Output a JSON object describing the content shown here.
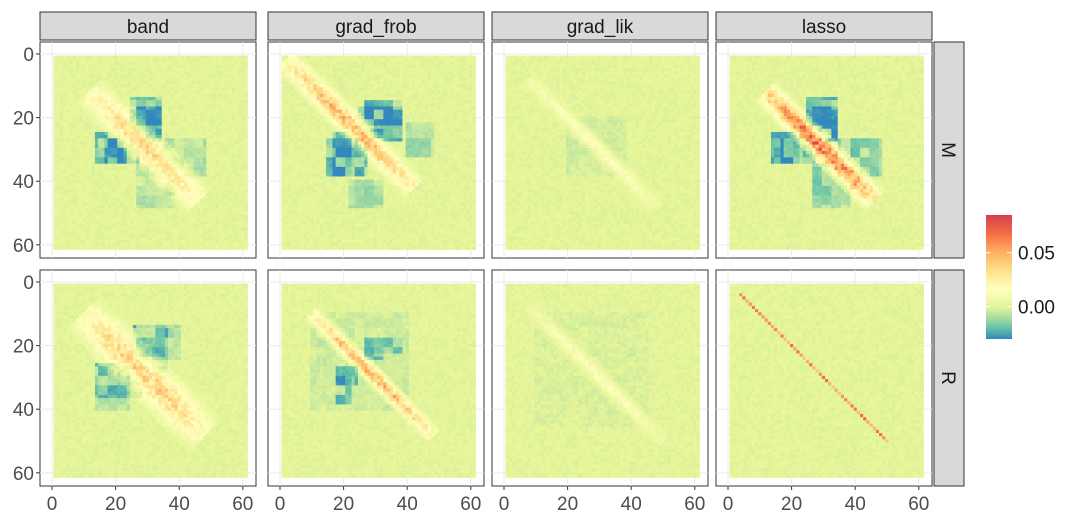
{
  "chart_data": {
    "type": "heatmap",
    "title": "",
    "xlabel": "",
    "ylabel": "",
    "columns": [
      "band",
      "grad_frob",
      "grad_lik",
      "lasso"
    ],
    "rows": [
      "M",
      "R"
    ],
    "x_range": [
      1,
      61
    ],
    "y_range": [
      1,
      61
    ],
    "y_reversed": true,
    "x_ticks": [
      "0",
      "20",
      "40",
      "60"
    ],
    "y_ticks": [
      "0",
      "20",
      "40",
      "60"
    ],
    "grid": true,
    "legend": {
      "position": "right",
      "title": "",
      "labels": [
        "0.05",
        "0.00"
      ],
      "label_values": [
        0.05,
        0.0
      ],
      "range": [
        -0.03,
        0.085
      ],
      "palette": [
        "#3288BD",
        "#66C2A5",
        "#ABDDA4",
        "#E6F598",
        "#FFFFBF",
        "#FEE08B",
        "#FDAE61",
        "#F46D43",
        "#D53E4F"
      ]
    },
    "panels": [
      {
        "row": "M",
        "column": "band",
        "diag_peak": 0.045,
        "diag_band": [
          12,
          46
        ],
        "diag_width": 4,
        "neg_blocks": [
          [
            17,
            27,
            27,
            34,
            -0.03
          ],
          [
            25,
            34,
            14,
            22,
            -0.025
          ],
          [
            35,
            48,
            27,
            38,
            -0.012
          ]
        ]
      },
      {
        "row": "M",
        "column": "grad_frob",
        "diag_peak": 0.06,
        "diag_band": [
          2,
          42
        ],
        "diag_width": 3,
        "neg_blocks": [
          [
            17,
            27,
            25,
            38,
            -0.028
          ],
          [
            27,
            38,
            15,
            22,
            -0.025
          ],
          [
            40,
            48,
            22,
            32,
            -0.015
          ]
        ]
      },
      {
        "row": "M",
        "column": "grad_lik",
        "diag_peak": 0.02,
        "diag_band": [
          8,
          48
        ],
        "diag_width": 2,
        "neg_blocks": [
          [
            20,
            35,
            22,
            38,
            -0.005
          ]
        ]
      },
      {
        "row": "M",
        "column": "lasso",
        "diag_peak": 0.085,
        "diag_band": [
          12,
          46
        ],
        "diag_width": 3,
        "neg_blocks": [
          [
            17,
            27,
            27,
            34,
            -0.032
          ],
          [
            25,
            34,
            14,
            22,
            -0.028
          ],
          [
            35,
            48,
            27,
            38,
            -0.02
          ]
        ]
      },
      {
        "row": "R",
        "column": "band",
        "diag_peak": 0.05,
        "diag_band": [
          10,
          48
        ],
        "diag_width": 5,
        "neg_blocks": [
          [
            14,
            28,
            26,
            36,
            -0.015
          ],
          [
            26,
            40,
            14,
            24,
            -0.012
          ]
        ]
      },
      {
        "row": "R",
        "column": "grad_frob",
        "diag_peak": 0.06,
        "diag_band": [
          10,
          48
        ],
        "diag_width": 2,
        "neg_blocks": [
          [
            18,
            24,
            27,
            32,
            -0.022
          ],
          [
            30,
            38,
            18,
            22,
            -0.018
          ],
          [
            10,
            40,
            10,
            40,
            -0.006
          ]
        ]
      },
      {
        "row": "R",
        "column": "grad_lik",
        "diag_peak": 0.018,
        "diag_band": [
          8,
          50
        ],
        "diag_width": 2,
        "neg_blocks": [
          [
            10,
            45,
            10,
            45,
            -0.003
          ]
        ]
      },
      {
        "row": "R",
        "column": "lasso",
        "diag_peak": 0.07,
        "diag_band": [
          4,
          50
        ],
        "diag_width": 0,
        "neg_blocks": []
      }
    ]
  }
}
